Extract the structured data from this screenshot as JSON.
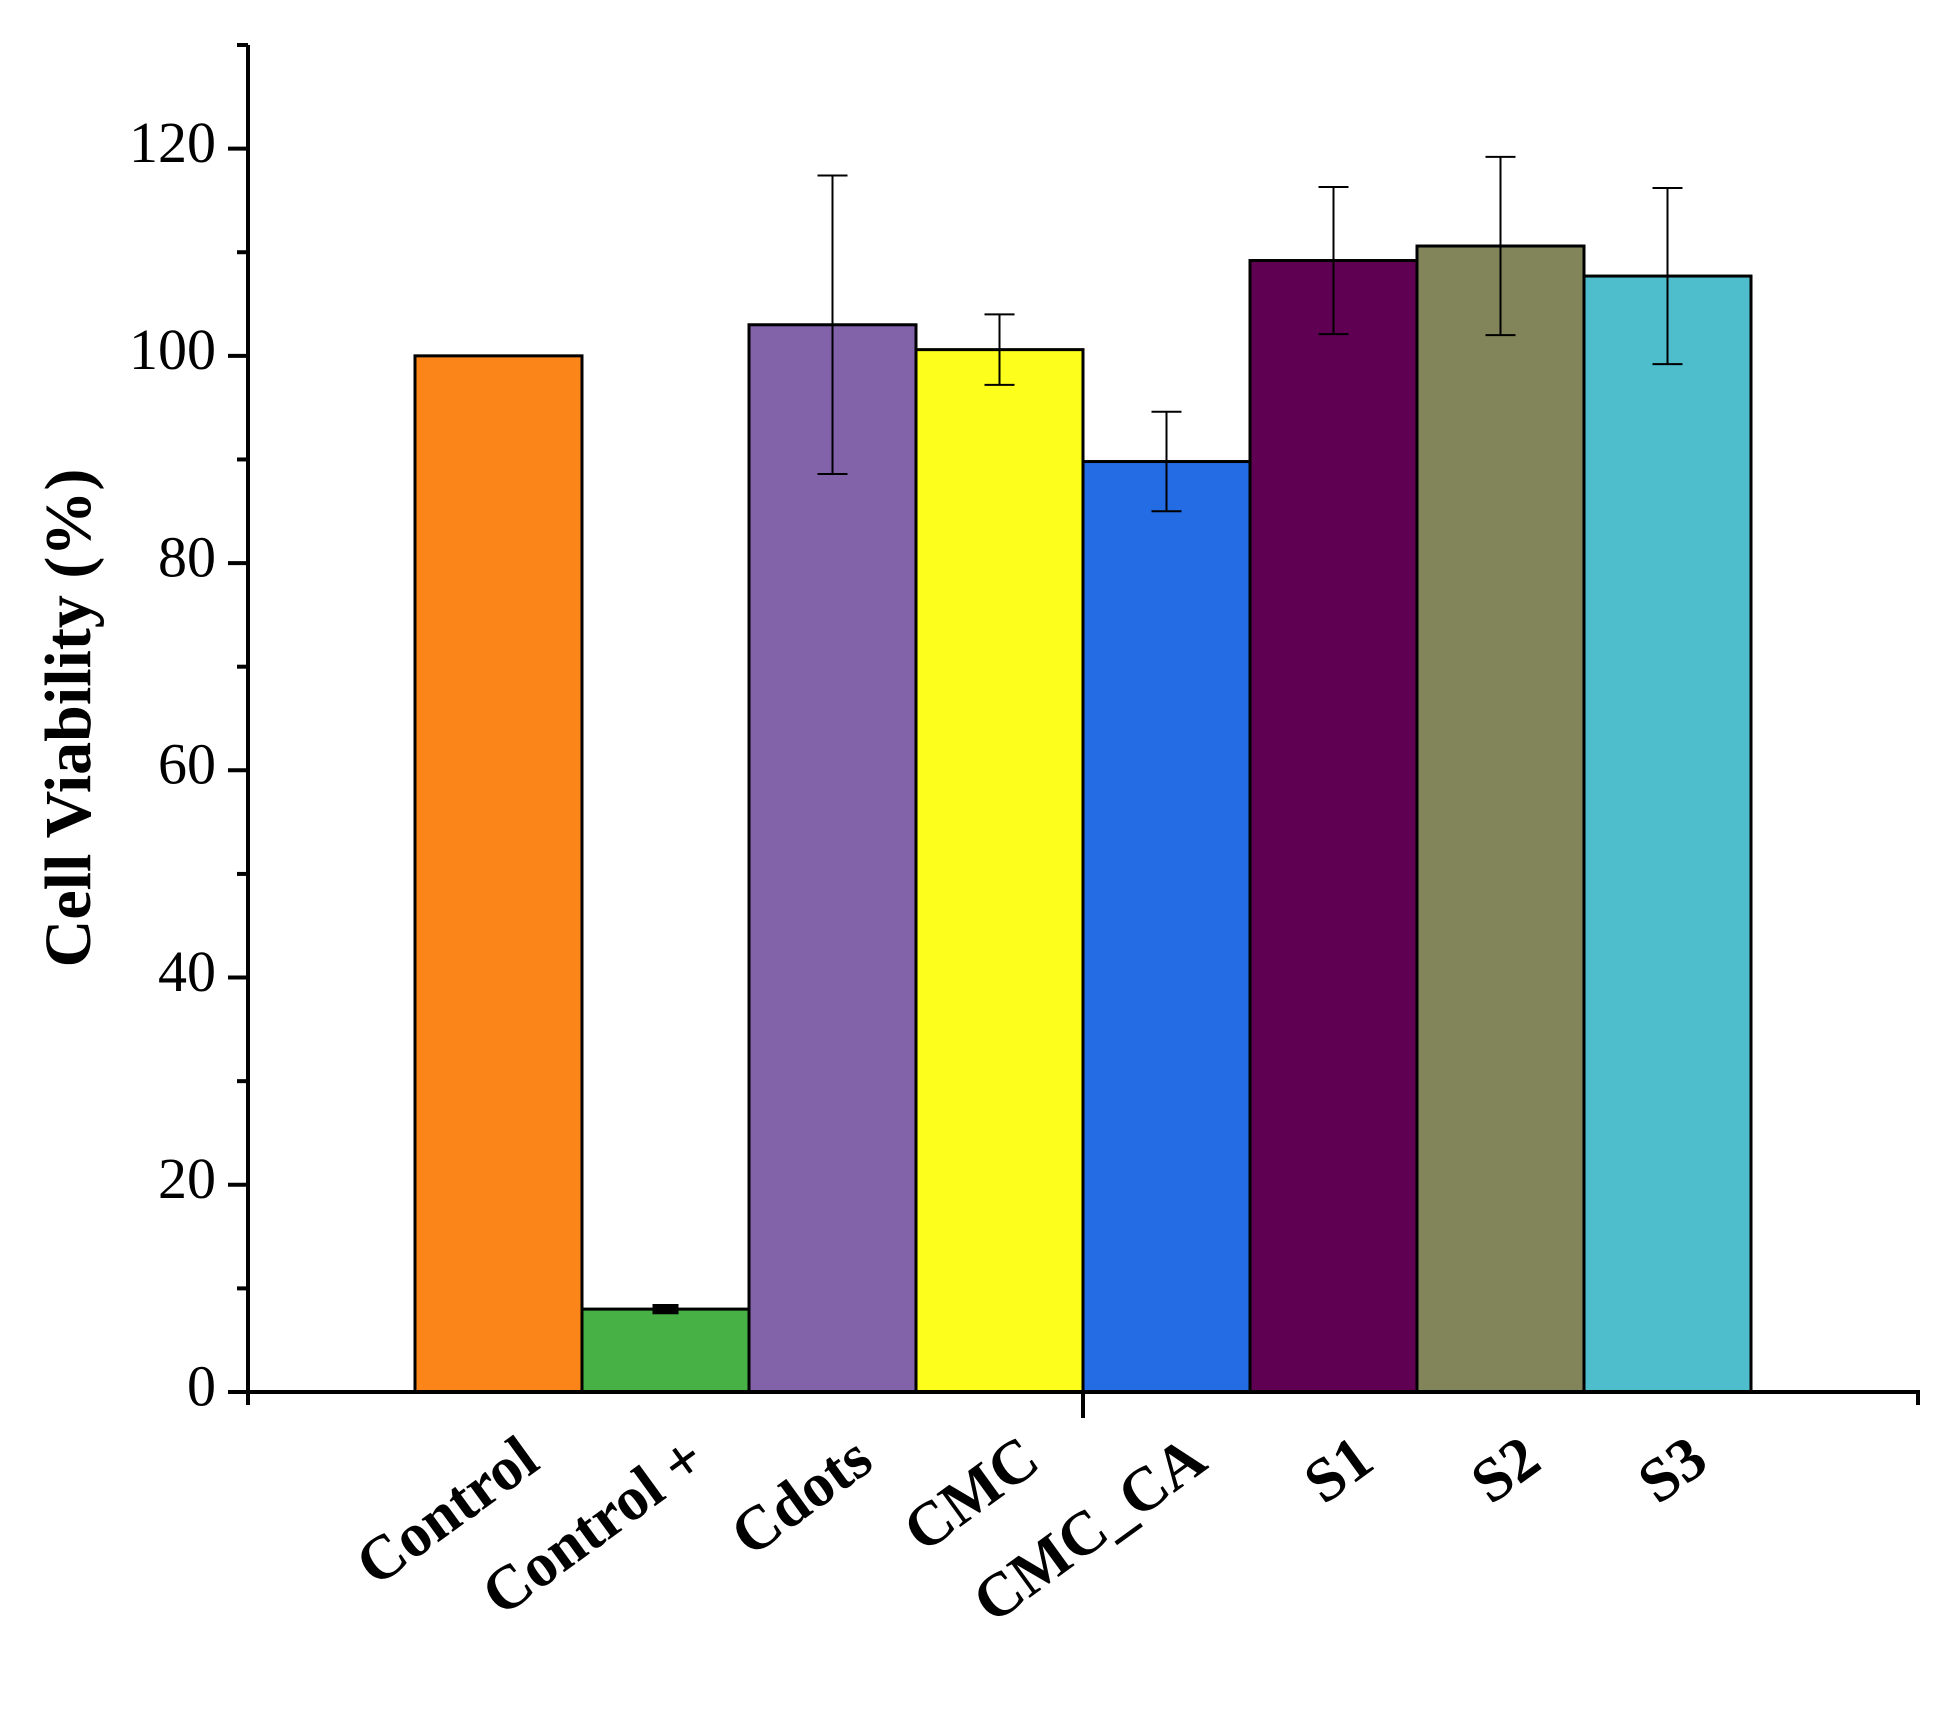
{
  "chart_data": {
    "type": "bar",
    "title": "",
    "xlabel": "",
    "ylabel": "Cell Viability (%)",
    "ylim": [
      0,
      130
    ],
    "yticks": [
      0,
      20,
      40,
      60,
      80,
      100,
      120
    ],
    "ytick_labels": [
      "0",
      "20",
      "40",
      "60",
      "80",
      "100",
      "120"
    ],
    "yminor_ticks": [
      10,
      30,
      50,
      70,
      90,
      110,
      130
    ],
    "grid": false,
    "legend": "none",
    "categories": [
      "Control",
      "Control +",
      "Cdots",
      "CMC",
      "CMC_CA",
      "S1",
      "S2",
      "S3"
    ],
    "values": [
      100,
      8,
      103,
      100.6,
      89.8,
      109.2,
      110.6,
      107.7
    ],
    "errors": [
      0,
      0.3,
      14.4,
      3.4,
      4.8,
      7.1,
      8.6,
      8.5
    ],
    "colors": [
      "#FB8518",
      "#47B145",
      "#8262A9",
      "#FEFE1C",
      "#246CE3",
      "#600052",
      "#828459",
      "#4EBDCC"
    ]
  }
}
